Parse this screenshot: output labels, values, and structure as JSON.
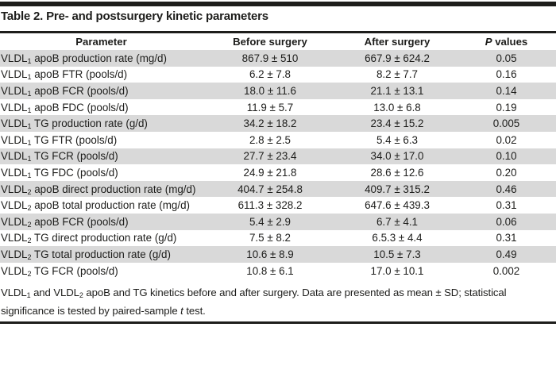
{
  "table": {
    "title": "Table 2. Pre- and postsurgery kinetic parameters",
    "headers": {
      "parameter": "Parameter",
      "before": "Before surgery",
      "after": "After surgery",
      "p_italic": "P",
      "p_rest": " values"
    },
    "rows": [
      {
        "param_prefix": "VLDL",
        "param_sub": "1",
        "param_rest": " apoB production rate (mg/d)",
        "before": "867.9 ± 510",
        "after": "667.9 ± 624.2",
        "p": "0.05"
      },
      {
        "param_prefix": "VLDL",
        "param_sub": "1",
        "param_rest": " apoB FTR (pools/d)",
        "before": "6.2 ± 7.8",
        "after": "8.2 ± 7.7",
        "p": "0.16"
      },
      {
        "param_prefix": "VLDL",
        "param_sub": "1",
        "param_rest": " apoB FCR (pools/d)",
        "before": "18.0 ± 11.6",
        "after": "21.1 ± 13.1",
        "p": "0.14"
      },
      {
        "param_prefix": "VLDL",
        "param_sub": "1",
        "param_rest": " apoB FDC (pools/d)",
        "before": "11.9 ± 5.7",
        "after": "13.0 ± 6.8",
        "p": "0.19"
      },
      {
        "param_prefix": "VLDL",
        "param_sub": "1",
        "param_rest": " TG production rate (g/d)",
        "before": "34.2 ± 18.2",
        "after": "23.4 ± 15.2",
        "p": "0.005"
      },
      {
        "param_prefix": "VLDL",
        "param_sub": "1",
        "param_rest": " TG FTR (pools/d)",
        "before": "2.8 ± 2.5",
        "after": "5.4 ± 6.3",
        "p": "0.02"
      },
      {
        "param_prefix": "VLDL",
        "param_sub": "1",
        "param_rest": " TG FCR (pools/d)",
        "before": "27.7 ± 23.4",
        "after": "34.0 ± 17.0",
        "p": "0.10"
      },
      {
        "param_prefix": "VLDL",
        "param_sub": "1",
        "param_rest": " TG FDC (pools/d)",
        "before": "24.9 ± 21.8",
        "after": "28.6 ± 12.6",
        "p": "0.20"
      },
      {
        "param_prefix": "VLDL",
        "param_sub": "2",
        "param_rest": " apoB direct production rate (mg/d)",
        "before": "404.7 ± 254.8",
        "after": "409.7 ± 315.2",
        "p": "0.46"
      },
      {
        "param_prefix": "VLDL",
        "param_sub": "2",
        "param_rest": " apoB total production rate (mg/d)",
        "before": "611.3 ± 328.2",
        "after": "647.6 ± 439.3",
        "p": "0.31"
      },
      {
        "param_prefix": "VLDL",
        "param_sub": "2",
        "param_rest": " apoB FCR (pools/d)",
        "before": "5.4 ± 2.9",
        "after": "6.7 ± 4.1",
        "p": "0.06"
      },
      {
        "param_prefix": "VLDL",
        "param_sub": "2",
        "param_rest": " TG direct production rate (g/d)",
        "before": "7.5 ± 8.2",
        "after": "6.5.3 ± 4.4",
        "p": "0.31"
      },
      {
        "param_prefix": "VLDL",
        "param_sub": "2",
        "param_rest": " TG total production rate (g/d)",
        "before": "10.6 ± 8.9",
        "after": "10.5 ± 7.3",
        "p": "0.49"
      },
      {
        "param_prefix": "VLDL",
        "param_sub": "2",
        "param_rest": " TG FCR (pools/d)",
        "before": "10.8 ± 6.1",
        "after": "17.0 ± 10.1",
        "p": "0.002"
      }
    ],
    "footnote": {
      "seg1": "VLDL",
      "sub1": "1",
      "seg2": " and VLDL",
      "sub2": "2",
      "seg3": " apoB and TG kinetics before and after surgery. Data are presented as mean ± SD; statistical significance is tested by paired-sample ",
      "italic_t": "t",
      "seg4": " test."
    },
    "colors": {
      "ink": "#1d1d1b",
      "row_shade": "#d9d9d9"
    }
  }
}
